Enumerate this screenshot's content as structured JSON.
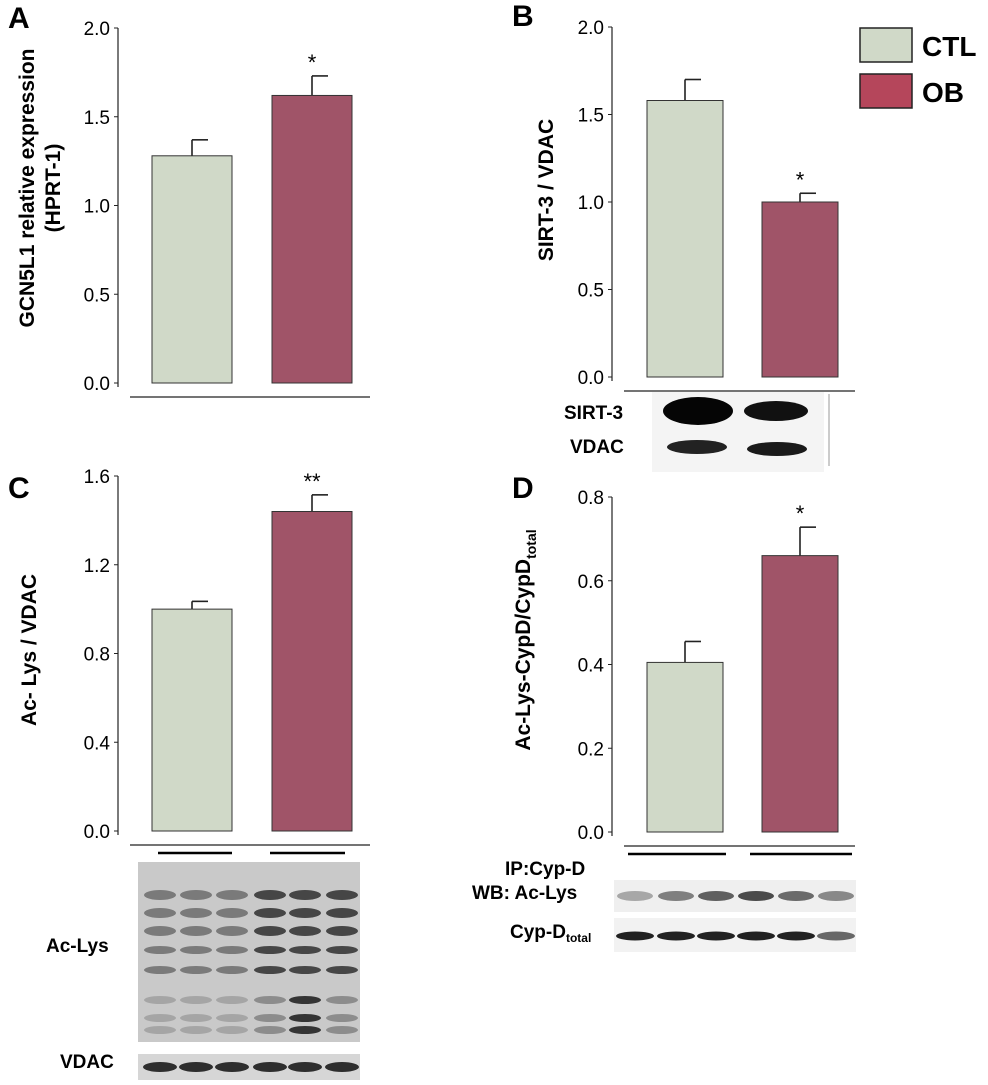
{
  "legend": [
    {
      "label": "CTL",
      "color": "#d0d9c8"
    },
    {
      "label": "OB",
      "color": "#b5465b"
    }
  ],
  "colors": {
    "ctl_bar": "#d0d9c8",
    "ob_bar": "#a05468"
  },
  "chart_data": [
    {
      "panel": "A",
      "type": "bar",
      "categories": [
        "CTL",
        "OB"
      ],
      "values": [
        1.28,
        1.62
      ],
      "errors": [
        0.09,
        0.11
      ],
      "significance": [
        "",
        "*"
      ],
      "ylabel_line1": "GCN5L1 relative expression",
      "ylabel_line2": "(HPRT-1)",
      "ylim": [
        0,
        2.0
      ],
      "ticks": [
        "0.0",
        "0.5",
        "1.0",
        "1.5",
        "2.0"
      ],
      "tick_values": [
        0,
        0.5,
        1.0,
        1.5,
        2.0
      ]
    },
    {
      "panel": "B",
      "type": "bar",
      "categories": [
        "CTL",
        "OB"
      ],
      "values": [
        1.58,
        1.0
      ],
      "errors": [
        0.12,
        0.05
      ],
      "significance": [
        "",
        "*"
      ],
      "ylabel_line1": "SIRT-3  / VDAC",
      "ylim": [
        0,
        2.0
      ],
      "ticks": [
        "0.0",
        "0.5",
        "1.0",
        "1.5",
        "2.0"
      ],
      "tick_values": [
        0,
        0.5,
        1.0,
        1.5,
        2.0
      ],
      "blot_labels": [
        "SIRT-3",
        "VDAC"
      ]
    },
    {
      "panel": "C",
      "type": "bar",
      "categories": [
        "CTL",
        "OB"
      ],
      "values": [
        1.0,
        1.44
      ],
      "errors": [
        0.035,
        0.075
      ],
      "significance": [
        "",
        "**"
      ],
      "ylabel_line1": "Ac- Lys / VDAC",
      "ylim": [
        0,
        1.6
      ],
      "ticks": [
        "0.0",
        "0.4",
        "0.8",
        "1.2",
        "1.6"
      ],
      "tick_values": [
        0,
        0.4,
        0.8,
        1.2,
        1.6
      ],
      "blot_labels": [
        "Ac-Lys",
        "VDAC"
      ]
    },
    {
      "panel": "D",
      "type": "bar",
      "categories": [
        "CTL",
        "OB"
      ],
      "values": [
        0.405,
        0.66
      ],
      "errors": [
        0.05,
        0.068
      ],
      "significance": [
        "",
        "*"
      ],
      "ylabel_main": "Ac-Lys-CypD/CypD",
      "ylabel_sub": "total",
      "ylim": [
        0,
        0.8
      ],
      "ticks": [
        "0.0",
        "0.2",
        "0.4",
        "0.6",
        "0.8"
      ],
      "tick_values": [
        0,
        0.2,
        0.4,
        0.6,
        0.8
      ],
      "blot_labels": [
        "IP:Cyp-D",
        "WB: Ac-Lys",
        "Cyp-D"
      ],
      "blot_label_sub": "total"
    }
  ]
}
